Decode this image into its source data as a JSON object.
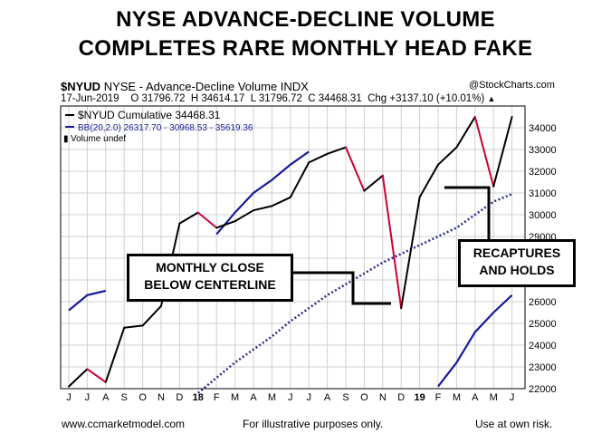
{
  "title_line1": "NYSE ADVANCE-DECLINE VOLUME",
  "title_line2": "COMPLETES RARE MONTHLY HEAD FAKE",
  "header": {
    "symbol": "$NYUD",
    "description": "NYSE - Advance-Decline Volume INDX",
    "source": "@StockCharts.com",
    "date": "17-Jun-2019",
    "open": "O 31796.72",
    "high": "H 34614.17",
    "low": "L 31796.72",
    "close": "C 34468.31",
    "change": "Chg +3137.10 (+10.01%)"
  },
  "legend": {
    "line": "$NYUD Cumulative 34468.31",
    "bb": "BB(20,2.0) 26317.70 - 30968.53 - 35619.36",
    "volume": "Volume undef"
  },
  "annotations": {
    "left_line1": "MONTHLY CLOSE",
    "left_line2": "BELOW CENTERLINE",
    "right_line1": "RECAPTURES",
    "right_line2": "AND HOLDS"
  },
  "footer": {
    "website": "www.ccmarketmodel.com",
    "middle": "For illustrative purposes only.",
    "right": "Use at own risk."
  },
  "colors": {
    "up": "#000000",
    "down": "#cc0033",
    "bands": "#1a1a99",
    "middle_band": "#2a2a8a",
    "grid": "#d0d0d0"
  },
  "chart_data": {
    "type": "line",
    "x_tick_labels": [
      "J",
      "J",
      "A",
      "S",
      "O",
      "N",
      "D",
      "18",
      "F",
      "M",
      "A",
      "M",
      "J",
      "J",
      "A",
      "S",
      "O",
      "N",
      "D",
      "19",
      "F",
      "M",
      "A",
      "M",
      "J"
    ],
    "ylim": [
      22000,
      35000
    ],
    "y_ticks": [
      "22000",
      "23000",
      "24000",
      "25000",
      "26000",
      "27000",
      "28000",
      "29000",
      "30000",
      "31000",
      "32000",
      "33000",
      "34000"
    ],
    "series": [
      {
        "name": "$NYUD Cumulative",
        "values": [
          22100,
          22900,
          22300,
          24800,
          24900,
          25800,
          29600,
          30100,
          29400,
          29700,
          30200,
          30400,
          30800,
          32400,
          32800,
          33100,
          31100,
          31800,
          25700,
          30800,
          32300,
          33100,
          34500,
          31300,
          34500
        ]
      },
      {
        "name": "BB upper",
        "values": [
          25600,
          26300,
          26500,
          null,
          null,
          null,
          null,
          null,
          29100,
          30100,
          31000,
          31600,
          32300,
          32900,
          null,
          null,
          null,
          null,
          null,
          null,
          null,
          null,
          null,
          null,
          null
        ]
      },
      {
        "name": "BB middle",
        "values": [
          null,
          null,
          null,
          null,
          null,
          null,
          null,
          21800,
          22500,
          23200,
          23800,
          24400,
          25100,
          25700,
          26300,
          26800,
          27300,
          27800,
          28200,
          28600,
          29000,
          29400,
          30000,
          30600,
          30950
        ]
      },
      {
        "name": "BB lower",
        "values": [
          null,
          null,
          null,
          null,
          null,
          null,
          null,
          null,
          null,
          null,
          null,
          null,
          null,
          null,
          null,
          null,
          null,
          null,
          null,
          null,
          22100,
          23200,
          24600,
          25500,
          26300
        ]
      }
    ]
  }
}
